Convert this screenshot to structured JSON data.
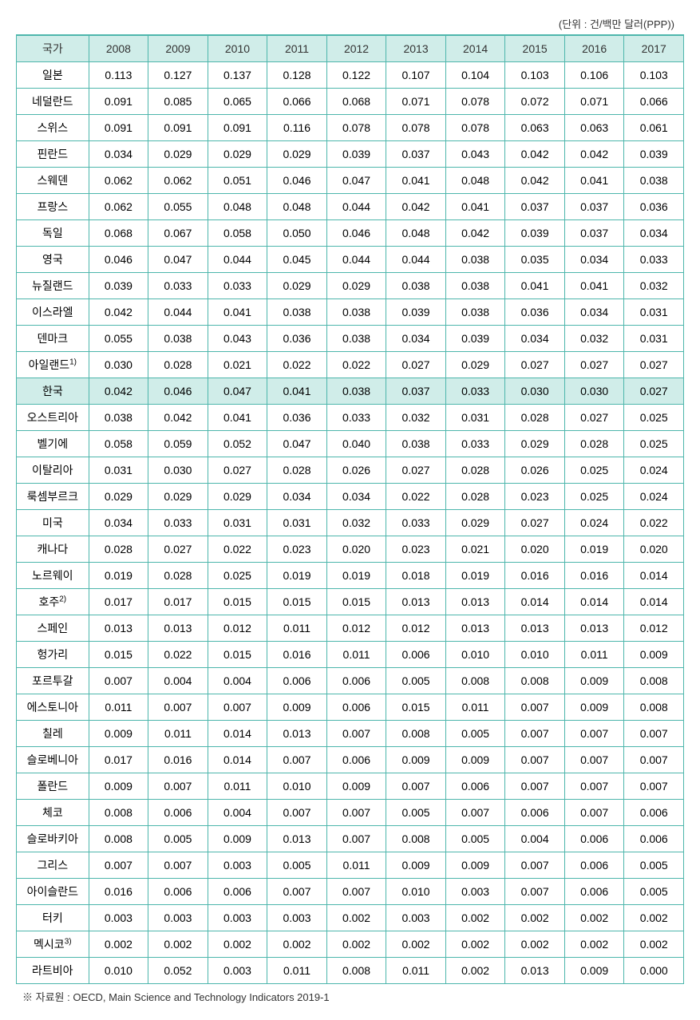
{
  "unit_label": "(단위 : 건/백만 달러(PPP))",
  "table": {
    "columns": [
      "국가",
      "2008",
      "2009",
      "2010",
      "2011",
      "2012",
      "2013",
      "2014",
      "2015",
      "2016",
      "2017"
    ],
    "column_bg": "#d0ede9",
    "border_color": "#4db6ac",
    "highlight_row_index": 12,
    "rows": [
      {
        "country": "일본",
        "sup": "",
        "values": [
          "0.113",
          "0.127",
          "0.137",
          "0.128",
          "0.122",
          "0.107",
          "0.104",
          "0.103",
          "0.106",
          "0.103"
        ]
      },
      {
        "country": "네덜란드",
        "sup": "",
        "values": [
          "0.091",
          "0.085",
          "0.065",
          "0.066",
          "0.068",
          "0.071",
          "0.078",
          "0.072",
          "0.071",
          "0.066"
        ]
      },
      {
        "country": "스위스",
        "sup": "",
        "values": [
          "0.091",
          "0.091",
          "0.091",
          "0.116",
          "0.078",
          "0.078",
          "0.078",
          "0.063",
          "0.063",
          "0.061"
        ]
      },
      {
        "country": "핀란드",
        "sup": "",
        "values": [
          "0.034",
          "0.029",
          "0.029",
          "0.029",
          "0.039",
          "0.037",
          "0.043",
          "0.042",
          "0.042",
          "0.039"
        ]
      },
      {
        "country": "스웨덴",
        "sup": "",
        "values": [
          "0.062",
          "0.062",
          "0.051",
          "0.046",
          "0.047",
          "0.041",
          "0.048",
          "0.042",
          "0.041",
          "0.038"
        ]
      },
      {
        "country": "프랑스",
        "sup": "",
        "values": [
          "0.062",
          "0.055",
          "0.048",
          "0.048",
          "0.044",
          "0.042",
          "0.041",
          "0.037",
          "0.037",
          "0.036"
        ]
      },
      {
        "country": "독일",
        "sup": "",
        "values": [
          "0.068",
          "0.067",
          "0.058",
          "0.050",
          "0.046",
          "0.048",
          "0.042",
          "0.039",
          "0.037",
          "0.034"
        ]
      },
      {
        "country": "영국",
        "sup": "",
        "values": [
          "0.046",
          "0.047",
          "0.044",
          "0.045",
          "0.044",
          "0.044",
          "0.038",
          "0.035",
          "0.034",
          "0.033"
        ]
      },
      {
        "country": "뉴질랜드",
        "sup": "",
        "values": [
          "0.039",
          "0.033",
          "0.033",
          "0.029",
          "0.029",
          "0.038",
          "0.038",
          "0.041",
          "0.041",
          "0.032"
        ]
      },
      {
        "country": "이스라엘",
        "sup": "",
        "values": [
          "0.042",
          "0.044",
          "0.041",
          "0.038",
          "0.038",
          "0.039",
          "0.038",
          "0.036",
          "0.034",
          "0.031"
        ]
      },
      {
        "country": "덴마크",
        "sup": "",
        "values": [
          "0.055",
          "0.038",
          "0.043",
          "0.036",
          "0.038",
          "0.034",
          "0.039",
          "0.034",
          "0.032",
          "0.031"
        ]
      },
      {
        "country": "아일랜드",
        "sup": "1)",
        "values": [
          "0.030",
          "0.028",
          "0.021",
          "0.022",
          "0.022",
          "0.027",
          "0.029",
          "0.027",
          "0.027",
          "0.027"
        ]
      },
      {
        "country": "한국",
        "sup": "",
        "values": [
          "0.042",
          "0.046",
          "0.047",
          "0.041",
          "0.038",
          "0.037",
          "0.033",
          "0.030",
          "0.030",
          "0.027"
        ]
      },
      {
        "country": "오스트리아",
        "sup": "",
        "values": [
          "0.038",
          "0.042",
          "0.041",
          "0.036",
          "0.033",
          "0.032",
          "0.031",
          "0.028",
          "0.027",
          "0.025"
        ]
      },
      {
        "country": "벨기에",
        "sup": "",
        "values": [
          "0.058",
          "0.059",
          "0.052",
          "0.047",
          "0.040",
          "0.038",
          "0.033",
          "0.029",
          "0.028",
          "0.025"
        ]
      },
      {
        "country": "이탈리아",
        "sup": "",
        "values": [
          "0.031",
          "0.030",
          "0.027",
          "0.028",
          "0.026",
          "0.027",
          "0.028",
          "0.026",
          "0.025",
          "0.024"
        ]
      },
      {
        "country": "룩셈부르크",
        "sup": "",
        "values": [
          "0.029",
          "0.029",
          "0.029",
          "0.034",
          "0.034",
          "0.022",
          "0.028",
          "0.023",
          "0.025",
          "0.024"
        ]
      },
      {
        "country": "미국",
        "sup": "",
        "values": [
          "0.034",
          "0.033",
          "0.031",
          "0.031",
          "0.032",
          "0.033",
          "0.029",
          "0.027",
          "0.024",
          "0.022"
        ]
      },
      {
        "country": "캐나다",
        "sup": "",
        "values": [
          "0.028",
          "0.027",
          "0.022",
          "0.023",
          "0.020",
          "0.023",
          "0.021",
          "0.020",
          "0.019",
          "0.020"
        ]
      },
      {
        "country": "노르웨이",
        "sup": "",
        "values": [
          "0.019",
          "0.028",
          "0.025",
          "0.019",
          "0.019",
          "0.018",
          "0.019",
          "0.016",
          "0.016",
          "0.014"
        ]
      },
      {
        "country": "호주",
        "sup": "2)",
        "values": [
          "0.017",
          "0.017",
          "0.015",
          "0.015",
          "0.015",
          "0.013",
          "0.013",
          "0.014",
          "0.014",
          "0.014"
        ]
      },
      {
        "country": "스페인",
        "sup": "",
        "values": [
          "0.013",
          "0.013",
          "0.012",
          "0.011",
          "0.012",
          "0.012",
          "0.013",
          "0.013",
          "0.013",
          "0.012"
        ]
      },
      {
        "country": "헝가리",
        "sup": "",
        "values": [
          "0.015",
          "0.022",
          "0.015",
          "0.016",
          "0.011",
          "0.006",
          "0.010",
          "0.010",
          "0.011",
          "0.009"
        ]
      },
      {
        "country": "포르투갈",
        "sup": "",
        "values": [
          "0.007",
          "0.004",
          "0.004",
          "0.006",
          "0.006",
          "0.005",
          "0.008",
          "0.008",
          "0.009",
          "0.008"
        ]
      },
      {
        "country": "에스토니아",
        "sup": "",
        "values": [
          "0.011",
          "0.007",
          "0.007",
          "0.009",
          "0.006",
          "0.015",
          "0.011",
          "0.007",
          "0.009",
          "0.008"
        ]
      },
      {
        "country": "칠레",
        "sup": "",
        "values": [
          "0.009",
          "0.011",
          "0.014",
          "0.013",
          "0.007",
          "0.008",
          "0.005",
          "0.007",
          "0.007",
          "0.007"
        ]
      },
      {
        "country": "슬로베니아",
        "sup": "",
        "values": [
          "0.017",
          "0.016",
          "0.014",
          "0.007",
          "0.006",
          "0.009",
          "0.009",
          "0.007",
          "0.007",
          "0.007"
        ]
      },
      {
        "country": "폴란드",
        "sup": "",
        "values": [
          "0.009",
          "0.007",
          "0.011",
          "0.010",
          "0.009",
          "0.007",
          "0.006",
          "0.007",
          "0.007",
          "0.007"
        ]
      },
      {
        "country": "체코",
        "sup": "",
        "values": [
          "0.008",
          "0.006",
          "0.004",
          "0.007",
          "0.007",
          "0.005",
          "0.007",
          "0.006",
          "0.007",
          "0.006"
        ]
      },
      {
        "country": "슬로바키아",
        "sup": "",
        "values": [
          "0.008",
          "0.005",
          "0.009",
          "0.013",
          "0.007",
          "0.008",
          "0.005",
          "0.004",
          "0.006",
          "0.006"
        ]
      },
      {
        "country": "그리스",
        "sup": "",
        "values": [
          "0.007",
          "0.007",
          "0.003",
          "0.005",
          "0.011",
          "0.009",
          "0.009",
          "0.007",
          "0.006",
          "0.005"
        ]
      },
      {
        "country": "아이슬란드",
        "sup": "",
        "values": [
          "0.016",
          "0.006",
          "0.006",
          "0.007",
          "0.007",
          "0.010",
          "0.003",
          "0.007",
          "0.006",
          "0.005"
        ]
      },
      {
        "country": "터키",
        "sup": "",
        "values": [
          "0.003",
          "0.003",
          "0.003",
          "0.003",
          "0.002",
          "0.003",
          "0.002",
          "0.002",
          "0.002",
          "0.002"
        ]
      },
      {
        "country": "멕시코",
        "sup": "3)",
        "values": [
          "0.002",
          "0.002",
          "0.002",
          "0.002",
          "0.002",
          "0.002",
          "0.002",
          "0.002",
          "0.002",
          "0.002"
        ]
      },
      {
        "country": "라트비아",
        "sup": "",
        "values": [
          "0.010",
          "0.052",
          "0.003",
          "0.011",
          "0.008",
          "0.011",
          "0.002",
          "0.013",
          "0.009",
          "0.000"
        ]
      }
    ]
  },
  "footnote": "※ 자료원 : OECD, Main Science and Technology Indicators 2019-1"
}
